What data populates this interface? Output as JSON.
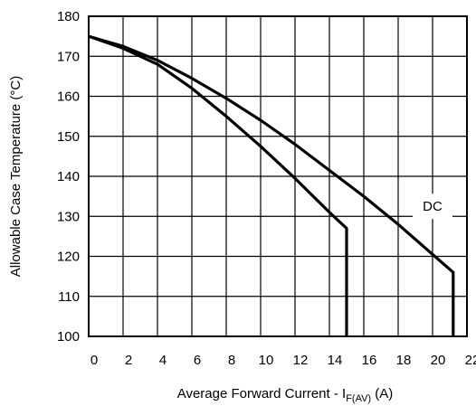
{
  "chart_data": {
    "type": "line",
    "xlabel_main": "Average Forward Current - I",
    "xlabel_sub": "F(AV)",
    "xlabel_unit": " (A)",
    "ylabel": "Allowable Case Temperature (°C)",
    "xlim": [
      0,
      22
    ],
    "ylim": [
      100,
      180
    ],
    "xticks": [
      0,
      2,
      4,
      6,
      8,
      10,
      12,
      14,
      16,
      18,
      20,
      22
    ],
    "yticks": [
      100,
      110,
      120,
      130,
      140,
      150,
      160,
      170,
      180
    ],
    "grid": true,
    "annotations": [
      {
        "text": "DC",
        "x": 20.0,
        "y": 132.5
      }
    ],
    "series": [
      {
        "x": [
          0,
          2,
          4,
          6,
          8,
          10,
          12,
          14,
          15,
          15
        ],
        "y": [
          175,
          172,
          168,
          162,
          155,
          147.5,
          139.5,
          131,
          127,
          100
        ]
      },
      {
        "x": [
          0,
          2,
          4,
          6,
          8,
          10,
          12,
          14,
          16,
          18,
          20,
          21.2,
          21.2
        ],
        "y": [
          175,
          172.5,
          169,
          164.5,
          159.5,
          154,
          148,
          141.5,
          135,
          128,
          120.5,
          116,
          100
        ]
      }
    ]
  }
}
